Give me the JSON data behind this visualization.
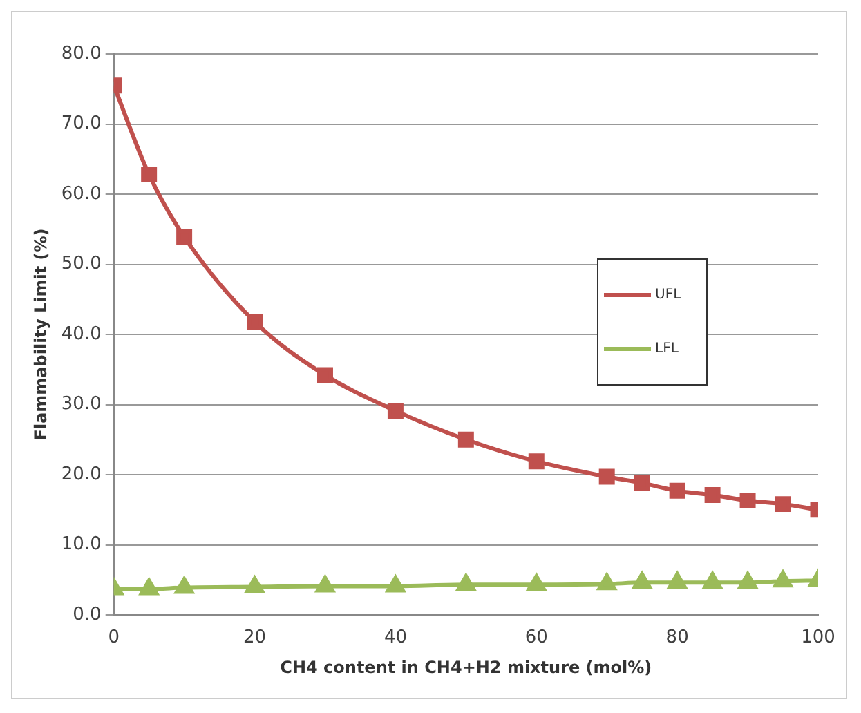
{
  "chart_data": {
    "type": "line",
    "xlabel": "CH4 content in CH4+H2 mixture (mol%)",
    "ylabel": "Flammability Limit (%)",
    "x": [
      0,
      5,
      10,
      20,
      30,
      40,
      50,
      60,
      70,
      75,
      80,
      85,
      90,
      95,
      100
    ],
    "series": [
      {
        "name": "UFL",
        "color": "#c0504d",
        "marker": "square",
        "values": [
          75.5,
          62.8,
          53.9,
          41.8,
          34.2,
          29.1,
          25.0,
          21.9,
          19.7,
          18.8,
          17.7,
          17.1,
          16.3,
          15.8,
          15.0
        ]
      },
      {
        "name": "LFL",
        "color": "#9bbb59",
        "marker": "triangle",
        "values": [
          3.7,
          3.7,
          3.9,
          4.0,
          4.1,
          4.1,
          4.3,
          4.3,
          4.4,
          4.6,
          4.6,
          4.6,
          4.6,
          4.8,
          4.9
        ]
      }
    ],
    "xlim": [
      0,
      100
    ],
    "xticks": [
      0,
      20,
      40,
      60,
      80,
      100
    ],
    "ylim": [
      0,
      80
    ],
    "yticks": [
      {
        "value": 0,
        "label": "0.0"
      },
      {
        "value": 10,
        "label": "10.0"
      },
      {
        "value": 20,
        "label": "20.0"
      },
      {
        "value": 30,
        "label": "30.0"
      },
      {
        "value": 40,
        "label": "40.0"
      },
      {
        "value": 50,
        "label": "50.0"
      },
      {
        "value": 60,
        "label": "60.0"
      },
      {
        "value": 70,
        "label": "70.0"
      },
      {
        "value": 80,
        "label": "80.0"
      }
    ],
    "grid": "y",
    "legend": "right",
    "line_style": "solid"
  }
}
